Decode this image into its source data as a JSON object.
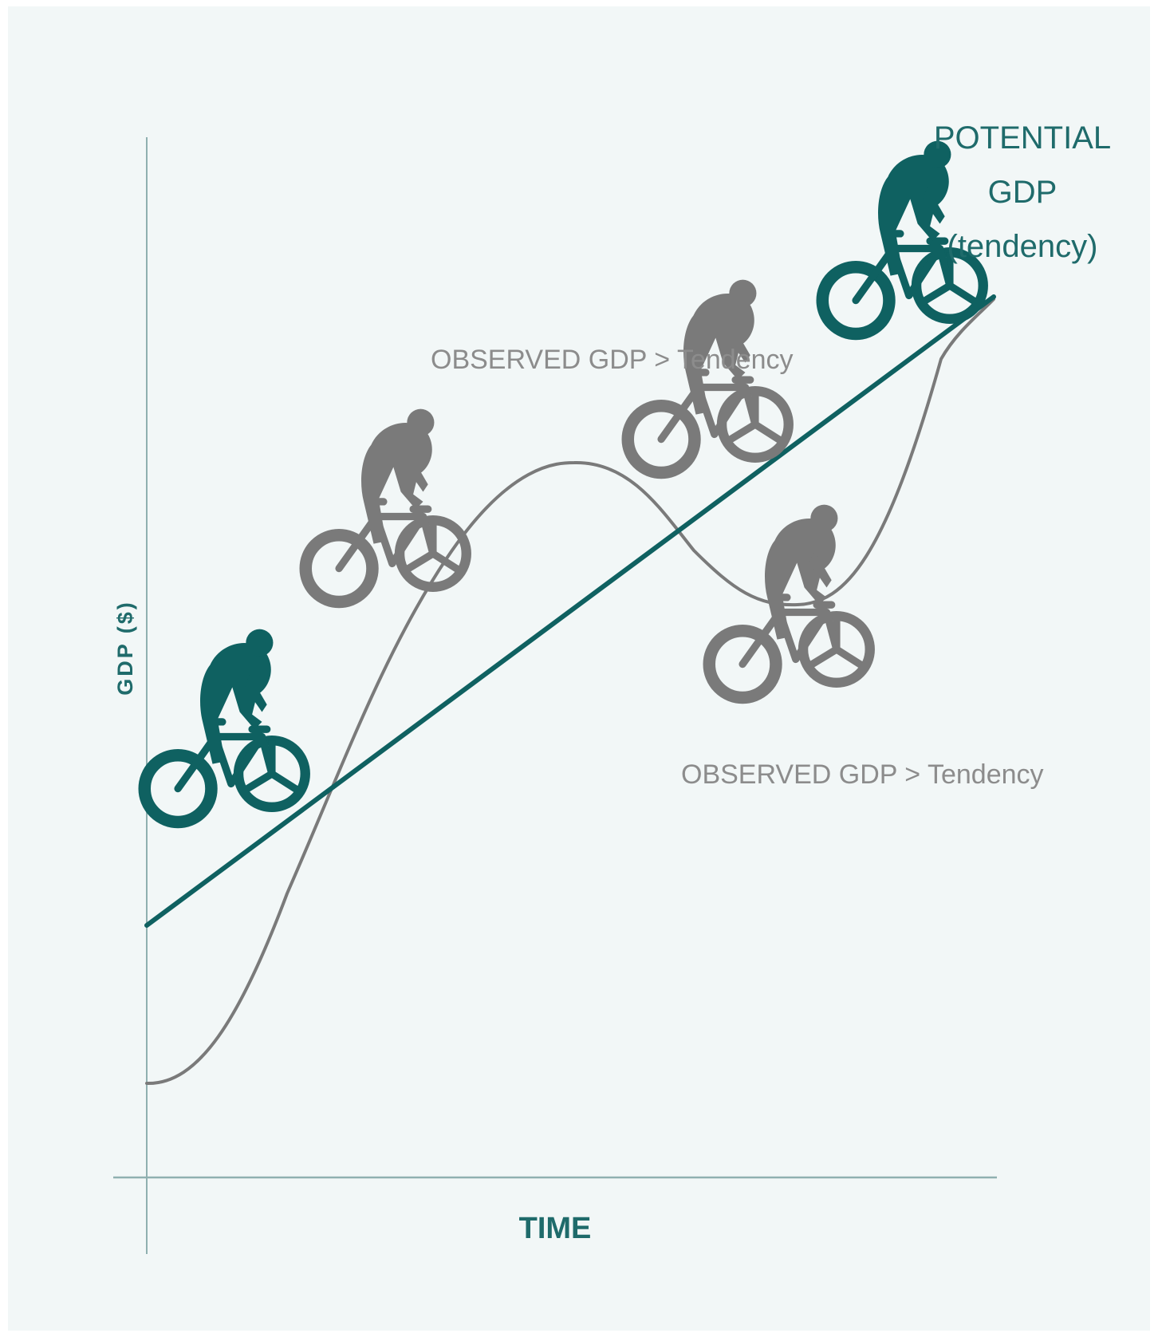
{
  "colors": {
    "background": "#f2f7f7",
    "accent": "#0f6161",
    "observed": "#7a7a7a",
    "axis": "#8fb0b0"
  },
  "labels": {
    "potential_line1": "POTENTIAL",
    "potential_line2": "GDP",
    "potential_line3": "(tendency)",
    "observed_upper": "OBSERVED GDP > Tendency",
    "observed_lower": "OBSERVED GDP > Tendency",
    "x_axis": "TIME",
    "y_axis": "GDP ($)"
  },
  "icons": [
    {
      "name": "cyclist-icon",
      "color": "accent"
    },
    {
      "name": "cyclist-icon",
      "color": "observed"
    },
    {
      "name": "cyclist-icon",
      "color": "observed"
    },
    {
      "name": "cyclist-icon",
      "color": "observed"
    },
    {
      "name": "cyclist-icon",
      "color": "accent"
    }
  ]
}
